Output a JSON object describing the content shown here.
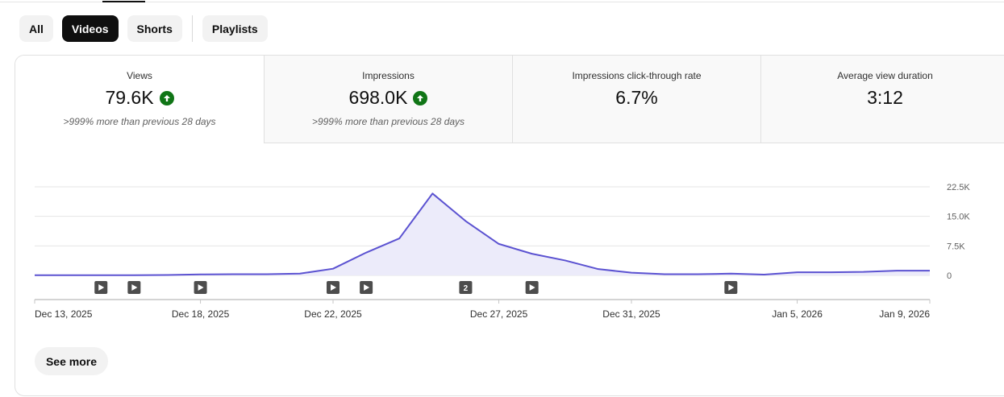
{
  "filters": {
    "chips": [
      {
        "label": "All",
        "active": false
      },
      {
        "label": "Videos",
        "active": true
      },
      {
        "label": "Shorts",
        "active": false
      },
      {
        "label": "Playlists",
        "active": false
      }
    ]
  },
  "metrics": [
    {
      "label": "Views",
      "value": "79.6K",
      "trend": "up",
      "note": ">999% more than previous 28 days",
      "selected": true
    },
    {
      "label": "Impressions",
      "value": "698.0K",
      "trend": "up",
      "note": ">999% more than previous 28 days",
      "selected": false
    },
    {
      "label": "Impressions click-through rate",
      "value": "6.7%",
      "trend": null,
      "note": "",
      "selected": false
    },
    {
      "label": "Average view duration",
      "value": "3:12",
      "trend": null,
      "note": "",
      "selected": false
    }
  ],
  "colors": {
    "line": "#5b52d1",
    "area": "#ecebfa",
    "trend_up": "#107516",
    "marker": "#4d4d4d"
  },
  "chart_data": {
    "type": "area",
    "x": [
      "Dec 13, 2025",
      "Dec 14, 2025",
      "Dec 15, 2025",
      "Dec 16, 2025",
      "Dec 17, 2025",
      "Dec 18, 2025",
      "Dec 19, 2025",
      "Dec 20, 2025",
      "Dec 21, 2025",
      "Dec 22, 2025",
      "Dec 23, 2025",
      "Dec 24, 2025",
      "Dec 25, 2025",
      "Dec 26, 2025",
      "Dec 27, 2025",
      "Dec 28, 2025",
      "Dec 29, 2025",
      "Dec 30, 2025",
      "Dec 31, 2025",
      "Jan 1, 2026",
      "Jan 2, 2026",
      "Jan 3, 2026",
      "Jan 4, 2026",
      "Jan 5, 2026",
      "Jan 6, 2026",
      "Jan 7, 2026",
      "Jan 8, 2026",
      "Jan 9, 2026"
    ],
    "series": [
      {
        "values": [
          50,
          50,
          60,
          50,
          100,
          250,
          300,
          300,
          450,
          1700,
          5800,
          9400,
          20800,
          13800,
          8000,
          5500,
          3800,
          1600,
          700,
          300,
          300,
          450,
          200,
          800,
          800,
          900,
          1200,
          1200
        ]
      }
    ],
    "xticks": [
      "Dec 13, 2025",
      "Dec 18, 2025",
      "Dec 22, 2025",
      "Dec 27, 2025",
      "Dec 31, 2025",
      "Jan 5, 2026",
      "Jan 9, 2026"
    ],
    "yticks": [
      0,
      7500,
      15000,
      22500
    ],
    "ytick_labels": [
      "0",
      "7.5K",
      "15.0K",
      "22.5K"
    ],
    "ylim": [
      0,
      22500
    ],
    "grid": true,
    "video_markers": [
      {
        "date": "Dec 15, 2025",
        "label": ""
      },
      {
        "date": "Dec 16, 2025",
        "label": ""
      },
      {
        "date": "Dec 18, 2025",
        "label": ""
      },
      {
        "date": "Dec 22, 2025",
        "label": ""
      },
      {
        "date": "Dec 23, 2025",
        "label": ""
      },
      {
        "date": "Dec 26, 2025",
        "label": "2"
      },
      {
        "date": "Dec 28, 2025",
        "label": ""
      },
      {
        "date": "Jan 3, 2026",
        "label": ""
      }
    ]
  },
  "actions": {
    "see_more_label": "See more"
  }
}
